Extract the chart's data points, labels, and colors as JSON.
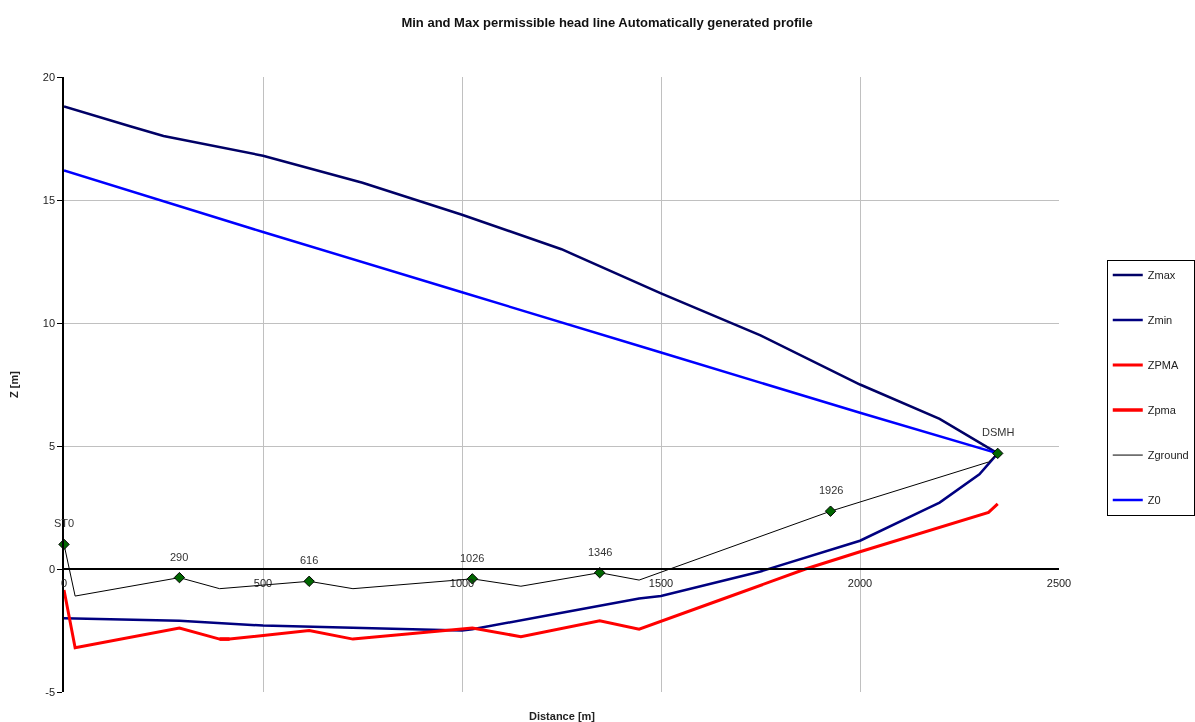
{
  "chart_data": {
    "type": "line",
    "title": "Min and Max permissible head line Automatically generated profile",
    "xlabel": "Distance [m]",
    "ylabel": "Z [m]",
    "xlim": [
      0,
      2500
    ],
    "ylim": [
      -5,
      20
    ],
    "xticks": [
      0,
      500,
      1000,
      1500,
      2000,
      2500
    ],
    "yticks": [
      -5,
      0,
      5,
      10,
      15,
      20
    ],
    "grid": true,
    "legend": "right",
    "line_style": "solid",
    "series": [
      {
        "name": "Zmax",
        "color": "#000066",
        "x": [
          0,
          166,
          250,
          500,
          750,
          1000,
          1250,
          1500,
          1750,
          2000,
          2200,
          2346
        ],
        "values": [
          18.8,
          18.0,
          17.6,
          16.8,
          15.7,
          14.4,
          13.0,
          11.2,
          9.5,
          7.5,
          6.1,
          4.7
        ]
      },
      {
        "name": "Zmin",
        "color": "#000080",
        "x": [
          0,
          290,
          500,
          750,
          1000,
          1026,
          1244,
          1445,
          1500,
          1750,
          2000,
          2200,
          2300,
          2346
        ],
        "values": [
          -2.0,
          -2.1,
          -2.3,
          -2.4,
          -2.5,
          -2.45,
          -1.8,
          -1.2,
          -1.1,
          -0.1,
          1.15,
          2.7,
          3.85,
          4.7
        ]
      },
      {
        "name": "ZPMA",
        "color": "#ff0000",
        "x": [
          0,
          28,
          290,
          391,
          416,
          616,
          726,
          1026,
          1148,
          1346,
          1445,
          1650,
          1863,
          2000,
          2323,
          2346
        ],
        "values": [
          -0.85,
          -3.2,
          -2.4,
          -2.85,
          -2.85,
          -2.5,
          -2.85,
          -2.4,
          -2.75,
          -2.1,
          -2.45,
          -1.25,
          0,
          0.7,
          2.3,
          2.65
        ]
      },
      {
        "name": "Zpma",
        "color": "#ff0000",
        "x": [
          391,
          416
        ],
        "values": [
          -2.85,
          -2.85
        ]
      },
      {
        "name": "Zground",
        "color": "#000000",
        "x": [
          0,
          28,
          290,
          391,
          616,
          726,
          1026,
          1148,
          1346,
          1445,
          1926,
          2323,
          2346
        ],
        "values": [
          1.0,
          -1.1,
          -0.35,
          -0.8,
          -0.5,
          -0.8,
          -0.4,
          -0.7,
          -0.15,
          -0.45,
          2.35,
          4.35,
          4.7
        ]
      },
      {
        "name": "Z0",
        "color": "#0000ff",
        "x": [
          0,
          500,
          1000,
          1500,
          2000,
          2346
        ],
        "values": [
          16.2,
          13.7,
          11.25,
          8.8,
          6.35,
          4.7
        ]
      },
      {
        "type": "scatter",
        "marker": "diamond",
        "color": "#006600",
        "x": [
          0,
          290,
          616,
          1026,
          1346,
          1926,
          2346
        ],
        "values": [
          1.0,
          -0.35,
          -0.5,
          -0.4,
          -0.15,
          2.35,
          4.7
        ]
      }
    ],
    "annotations": [
      {
        "text": "ST0",
        "x": 0,
        "y": 1.0
      },
      {
        "text": "290",
        "x": 290,
        "y": -0.35
      },
      {
        "text": "616",
        "x": 616,
        "y": -0.5
      },
      {
        "text": "1026",
        "x": 1026,
        "y": -0.4
      },
      {
        "text": "1346",
        "x": 1346,
        "y": -0.15
      },
      {
        "text": "1926",
        "x": 1926,
        "y": 2.35
      },
      {
        "text": "DSMH",
        "x": 2346,
        "y": 4.7
      }
    ]
  }
}
